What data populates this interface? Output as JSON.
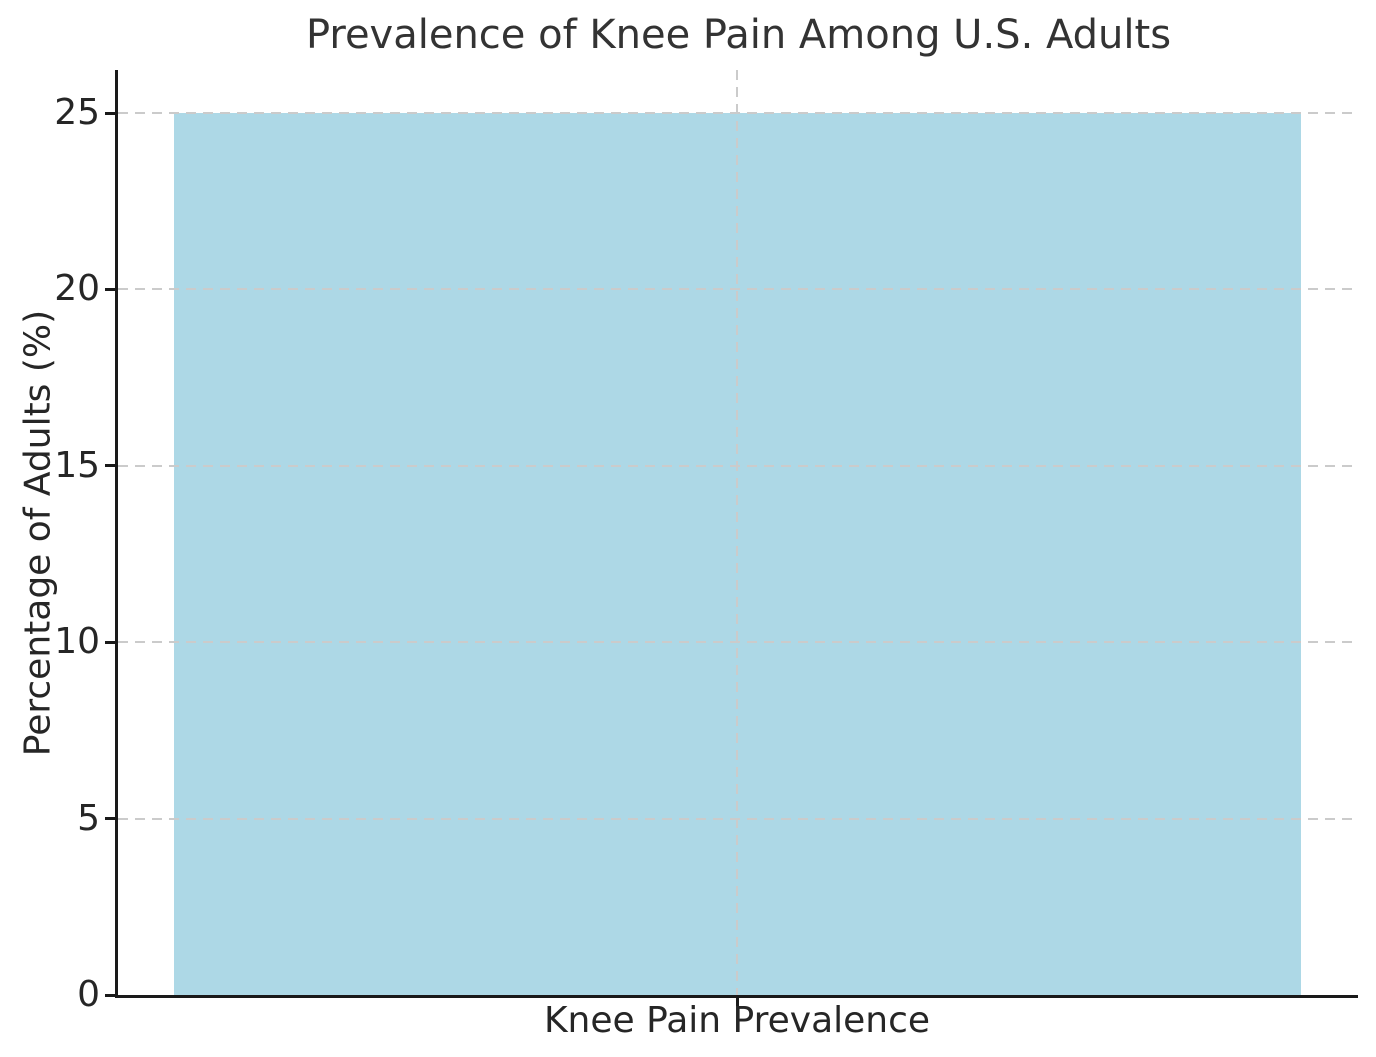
{
  "chart_data": {
    "type": "bar",
    "title": "Prevalence of Knee Pain Among U.S. Adults",
    "categories": [
      "Knee Pain Prevalence"
    ],
    "values": [
      25
    ],
    "xlabel": "",
    "ylabel": "Percentage of Adults (%)",
    "ylim": [
      0,
      25
    ],
    "yticks": [
      0,
      5,
      10,
      15,
      20,
      25
    ],
    "bar_color": "#ADD8E6",
    "grid": "dashed",
    "grid_color": "#cbcbcb",
    "legend": "none",
    "text_color": "#262626",
    "title_color": "#333333",
    "axis_color": "#1a1a1a"
  }
}
